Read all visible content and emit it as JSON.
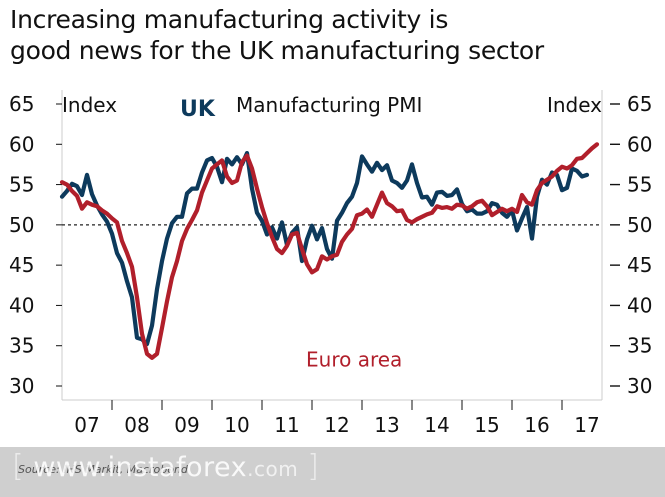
{
  "title_lines": [
    "Increasing manufacturing activity is",
    "good news for the UK manufacturing sector"
  ],
  "watermark": {
    "open": "[",
    "name": "www.instaforex",
    "tld": ".com",
    "close": "]"
  },
  "chart_data": {
    "type": "line",
    "title": "Manufacturing PMI",
    "ylabel_left": "Index",
    "ylabel_right": "Index",
    "ylim": [
      30,
      65
    ],
    "yticks": [
      30,
      35,
      40,
      45,
      50,
      55,
      60,
      65
    ],
    "reference_line": 50,
    "x_tick_labels": [
      "07",
      "08",
      "09",
      "10",
      "11",
      "12",
      "13",
      "14",
      "15",
      "16",
      "17"
    ],
    "xlim": [
      2007.0,
      2017.8
    ],
    "source": "Source: IHS Markit, Macrobond",
    "colors": {
      "uk": "#0d3a5c",
      "euro": "#b11f2b",
      "reference": "#222222"
    },
    "series": [
      {
        "name": "UK",
        "color": "#0d3a5c",
        "x": [
          2007.0,
          2007.1,
          2007.2,
          2007.3,
          2007.4,
          2007.5,
          2007.6,
          2007.7,
          2007.8,
          2007.9,
          2008.0,
          2008.1,
          2008.2,
          2008.3,
          2008.4,
          2008.5,
          2008.6,
          2008.7,
          2008.8,
          2008.9,
          2009.0,
          2009.1,
          2009.2,
          2009.3,
          2009.4,
          2009.5,
          2009.6,
          2009.7,
          2009.8,
          2009.9,
          2010.0,
          2010.1,
          2010.2,
          2010.3,
          2010.4,
          2010.5,
          2010.6,
          2010.7,
          2010.8,
          2010.9,
          2011.0,
          2011.1,
          2011.2,
          2011.3,
          2011.4,
          2011.5,
          2011.6,
          2011.7,
          2011.8,
          2011.9,
          2012.0,
          2012.1,
          2012.2,
          2012.3,
          2012.4,
          2012.5,
          2012.6,
          2012.7,
          2012.8,
          2012.9,
          2013.0,
          2013.1,
          2013.2,
          2013.3,
          2013.4,
          2013.5,
          2013.6,
          2013.7,
          2013.8,
          2013.9,
          2014.0,
          2014.1,
          2014.2,
          2014.3,
          2014.4,
          2014.5,
          2014.6,
          2014.7,
          2014.8,
          2014.9,
          2015.0,
          2015.1,
          2015.2,
          2015.3,
          2015.4,
          2015.5,
          2015.6,
          2015.7,
          2015.8,
          2015.9,
          2016.0,
          2016.1,
          2016.2,
          2016.3,
          2016.4,
          2016.5,
          2016.6,
          2016.7,
          2016.8,
          2016.9,
          2017.0,
          2017.1,
          2017.2,
          2017.3,
          2017.4,
          2017.5
        ],
        "values": [
          53.5,
          54.2,
          55.1,
          54.8,
          53.7,
          56.2,
          53.8,
          52.4,
          51.3,
          50.4,
          48.9,
          46.5,
          45.3,
          43.0,
          41.0,
          36.0,
          35.8,
          35.2,
          37.5,
          42.0,
          45.5,
          48.3,
          50.2,
          51.0,
          51.0,
          53.9,
          54.5,
          54.5,
          56.5,
          58.0,
          58.3,
          57.2,
          55.3,
          58.2,
          57.5,
          58.4,
          57.5,
          58.9,
          54.5,
          51.5,
          50.5,
          48.8,
          49.7,
          48.3,
          50.3,
          47.5,
          49.0,
          49.7,
          45.5,
          48.2,
          49.9,
          48.2,
          49.6,
          47.0,
          45.8,
          50.5,
          51.5,
          52.7,
          53.5,
          55.2,
          58.5,
          57.5,
          56.6,
          57.7,
          56.8,
          57.4,
          55.5,
          55.2,
          54.6,
          55.5,
          57.5,
          55.2,
          53.4,
          53.5,
          52.5,
          54.0,
          54.1,
          53.6,
          53.7,
          54.4,
          52.6,
          51.7,
          51.9,
          51.4,
          51.4,
          51.7,
          52.7,
          52.5,
          51.5,
          51.0,
          51.8,
          49.3,
          50.8,
          52.2,
          48.3,
          53.5,
          55.6,
          55.0,
          56.5,
          56.2,
          54.3,
          54.6,
          57.0,
          56.7,
          56.0,
          56.2
        ]
      },
      {
        "name": "Euro area",
        "color": "#b11f2b",
        "x": [
          2007.0,
          2007.1,
          2007.2,
          2007.3,
          2007.4,
          2007.5,
          2007.6,
          2007.7,
          2007.8,
          2007.9,
          2008.0,
          2008.1,
          2008.2,
          2008.3,
          2008.4,
          2008.5,
          2008.6,
          2008.7,
          2008.8,
          2008.9,
          2009.0,
          2009.1,
          2009.2,
          2009.3,
          2009.4,
          2009.5,
          2009.6,
          2009.7,
          2009.8,
          2009.9,
          2010.0,
          2010.1,
          2010.2,
          2010.3,
          2010.4,
          2010.5,
          2010.6,
          2010.7,
          2010.8,
          2010.9,
          2011.0,
          2011.1,
          2011.2,
          2011.3,
          2011.4,
          2011.5,
          2011.6,
          2011.7,
          2011.8,
          2011.9,
          2012.0,
          2012.1,
          2012.2,
          2012.3,
          2012.4,
          2012.5,
          2012.6,
          2012.7,
          2012.8,
          2012.9,
          2013.0,
          2013.1,
          2013.2,
          2013.3,
          2013.4,
          2013.5,
          2013.6,
          2013.7,
          2013.8,
          2013.9,
          2014.0,
          2014.1,
          2014.2,
          2014.3,
          2014.4,
          2014.5,
          2014.6,
          2014.7,
          2014.8,
          2014.9,
          2015.0,
          2015.1,
          2015.2,
          2015.3,
          2015.4,
          2015.5,
          2015.6,
          2015.7,
          2015.8,
          2015.9,
          2016.0,
          2016.1,
          2016.2,
          2016.3,
          2016.4,
          2016.5,
          2016.6,
          2016.7,
          2016.8,
          2016.9,
          2017.0,
          2017.1,
          2017.2,
          2017.3,
          2017.4,
          2017.5,
          2017.6,
          2017.7
        ],
        "values": [
          55.3,
          55.0,
          54.2,
          53.6,
          52.0,
          52.8,
          52.5,
          52.3,
          51.8,
          51.4,
          50.8,
          50.3,
          48.0,
          46.5,
          44.8,
          41.0,
          36.5,
          34.0,
          33.5,
          34.0,
          37.2,
          40.5,
          43.5,
          45.5,
          48.0,
          49.5,
          50.6,
          51.8,
          54.0,
          55.5,
          57.0,
          57.5,
          58.0,
          56.0,
          55.2,
          55.5,
          57.8,
          58.6,
          57.0,
          54.5,
          52.2,
          50.2,
          48.5,
          47.0,
          46.5,
          47.4,
          48.8,
          49.0,
          47.0,
          45.1,
          44.1,
          44.5,
          46.1,
          45.7,
          46.1,
          46.3,
          47.9,
          48.8,
          49.5,
          51.2,
          51.4,
          51.9,
          51.0,
          52.5,
          54.0,
          52.7,
          52.3,
          51.7,
          51.8,
          50.6,
          50.3,
          50.7,
          51.0,
          51.3,
          51.5,
          52.3,
          52.1,
          52.2,
          52.0,
          52.5,
          52.4,
          52.0,
          52.3,
          52.8,
          53.0,
          52.3,
          51.2,
          51.6,
          52.0,
          51.7,
          52.0,
          51.6,
          53.7,
          52.8,
          52.5,
          54.3,
          55.2,
          55.6,
          56.0,
          56.7,
          57.2,
          57.0,
          57.4,
          58.2,
          58.3,
          58.9,
          59.5,
          60.0
        ]
      }
    ],
    "annotations": [
      {
        "text": "UK",
        "series": "UK"
      },
      {
        "text": "Euro area",
        "series": "Euro area"
      }
    ],
    "grid": false,
    "legend": "none"
  }
}
